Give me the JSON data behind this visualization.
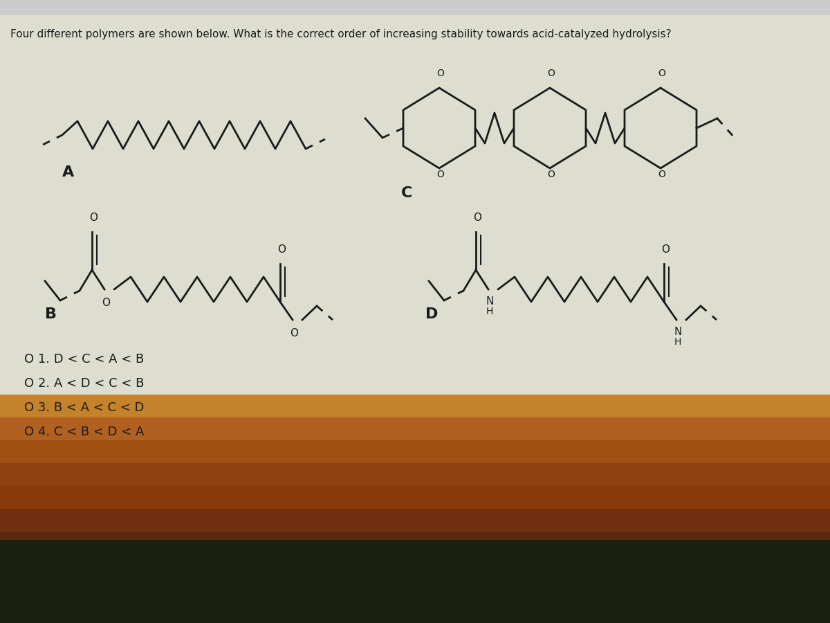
{
  "title": "Four different polymers are shown below. What is the correct order of increasing stability towards acid-catalyzed hydrolysis?",
  "bg_color_top": "#deded0",
  "bg_color_bottom": "#8B5E3C",
  "text_color": "#1a1a1a",
  "options": [
    "O 1. D < C < A < B",
    "O 2. A < D < C < B",
    "O 3. B < A < C < D",
    "O 4. C < B < D < A"
  ],
  "label_A": "A",
  "label_B": "B",
  "label_C": "C",
  "label_D": "D",
  "lw": 2.0
}
